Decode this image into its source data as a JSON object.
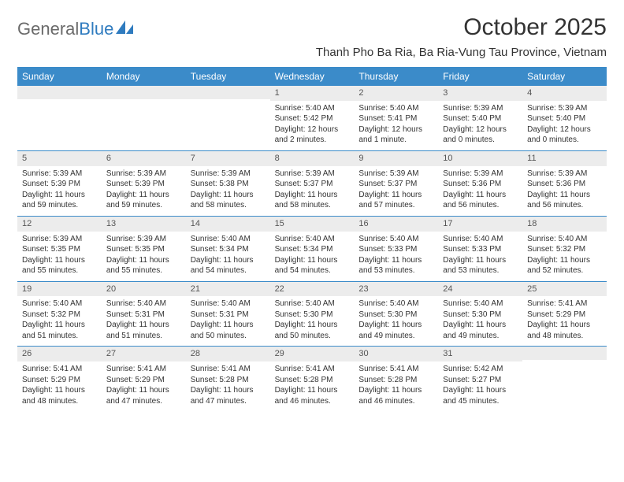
{
  "logo": {
    "text1": "General",
    "text2": "Blue"
  },
  "title": "October 2025",
  "location": "Thanh Pho Ba Ria, Ba Ria-Vung Tau Province, Vietnam",
  "header_bg": "#3b8bc9",
  "daynum_bg": "#ececec",
  "rule_color": "#3b8bc9",
  "days_of_week": [
    "Sunday",
    "Monday",
    "Tuesday",
    "Wednesday",
    "Thursday",
    "Friday",
    "Saturday"
  ],
  "weeks": [
    [
      {
        "n": "",
        "sr": "",
        "ss": "",
        "dl": ""
      },
      {
        "n": "",
        "sr": "",
        "ss": "",
        "dl": ""
      },
      {
        "n": "",
        "sr": "",
        "ss": "",
        "dl": ""
      },
      {
        "n": "1",
        "sr": "Sunrise: 5:40 AM",
        "ss": "Sunset: 5:42 PM",
        "dl": "Daylight: 12 hours and 2 minutes."
      },
      {
        "n": "2",
        "sr": "Sunrise: 5:40 AM",
        "ss": "Sunset: 5:41 PM",
        "dl": "Daylight: 12 hours and 1 minute."
      },
      {
        "n": "3",
        "sr": "Sunrise: 5:39 AM",
        "ss": "Sunset: 5:40 PM",
        "dl": "Daylight: 12 hours and 0 minutes."
      },
      {
        "n": "4",
        "sr": "Sunrise: 5:39 AM",
        "ss": "Sunset: 5:40 PM",
        "dl": "Daylight: 12 hours and 0 minutes."
      }
    ],
    [
      {
        "n": "5",
        "sr": "Sunrise: 5:39 AM",
        "ss": "Sunset: 5:39 PM",
        "dl": "Daylight: 11 hours and 59 minutes."
      },
      {
        "n": "6",
        "sr": "Sunrise: 5:39 AM",
        "ss": "Sunset: 5:39 PM",
        "dl": "Daylight: 11 hours and 59 minutes."
      },
      {
        "n": "7",
        "sr": "Sunrise: 5:39 AM",
        "ss": "Sunset: 5:38 PM",
        "dl": "Daylight: 11 hours and 58 minutes."
      },
      {
        "n": "8",
        "sr": "Sunrise: 5:39 AM",
        "ss": "Sunset: 5:37 PM",
        "dl": "Daylight: 11 hours and 58 minutes."
      },
      {
        "n": "9",
        "sr": "Sunrise: 5:39 AM",
        "ss": "Sunset: 5:37 PM",
        "dl": "Daylight: 11 hours and 57 minutes."
      },
      {
        "n": "10",
        "sr": "Sunrise: 5:39 AM",
        "ss": "Sunset: 5:36 PM",
        "dl": "Daylight: 11 hours and 56 minutes."
      },
      {
        "n": "11",
        "sr": "Sunrise: 5:39 AM",
        "ss": "Sunset: 5:36 PM",
        "dl": "Daylight: 11 hours and 56 minutes."
      }
    ],
    [
      {
        "n": "12",
        "sr": "Sunrise: 5:39 AM",
        "ss": "Sunset: 5:35 PM",
        "dl": "Daylight: 11 hours and 55 minutes."
      },
      {
        "n": "13",
        "sr": "Sunrise: 5:39 AM",
        "ss": "Sunset: 5:35 PM",
        "dl": "Daylight: 11 hours and 55 minutes."
      },
      {
        "n": "14",
        "sr": "Sunrise: 5:40 AM",
        "ss": "Sunset: 5:34 PM",
        "dl": "Daylight: 11 hours and 54 minutes."
      },
      {
        "n": "15",
        "sr": "Sunrise: 5:40 AM",
        "ss": "Sunset: 5:34 PM",
        "dl": "Daylight: 11 hours and 54 minutes."
      },
      {
        "n": "16",
        "sr": "Sunrise: 5:40 AM",
        "ss": "Sunset: 5:33 PM",
        "dl": "Daylight: 11 hours and 53 minutes."
      },
      {
        "n": "17",
        "sr": "Sunrise: 5:40 AM",
        "ss": "Sunset: 5:33 PM",
        "dl": "Daylight: 11 hours and 53 minutes."
      },
      {
        "n": "18",
        "sr": "Sunrise: 5:40 AM",
        "ss": "Sunset: 5:32 PM",
        "dl": "Daylight: 11 hours and 52 minutes."
      }
    ],
    [
      {
        "n": "19",
        "sr": "Sunrise: 5:40 AM",
        "ss": "Sunset: 5:32 PM",
        "dl": "Daylight: 11 hours and 51 minutes."
      },
      {
        "n": "20",
        "sr": "Sunrise: 5:40 AM",
        "ss": "Sunset: 5:31 PM",
        "dl": "Daylight: 11 hours and 51 minutes."
      },
      {
        "n": "21",
        "sr": "Sunrise: 5:40 AM",
        "ss": "Sunset: 5:31 PM",
        "dl": "Daylight: 11 hours and 50 minutes."
      },
      {
        "n": "22",
        "sr": "Sunrise: 5:40 AM",
        "ss": "Sunset: 5:30 PM",
        "dl": "Daylight: 11 hours and 50 minutes."
      },
      {
        "n": "23",
        "sr": "Sunrise: 5:40 AM",
        "ss": "Sunset: 5:30 PM",
        "dl": "Daylight: 11 hours and 49 minutes."
      },
      {
        "n": "24",
        "sr": "Sunrise: 5:40 AM",
        "ss": "Sunset: 5:30 PM",
        "dl": "Daylight: 11 hours and 49 minutes."
      },
      {
        "n": "25",
        "sr": "Sunrise: 5:41 AM",
        "ss": "Sunset: 5:29 PM",
        "dl": "Daylight: 11 hours and 48 minutes."
      }
    ],
    [
      {
        "n": "26",
        "sr": "Sunrise: 5:41 AM",
        "ss": "Sunset: 5:29 PM",
        "dl": "Daylight: 11 hours and 48 minutes."
      },
      {
        "n": "27",
        "sr": "Sunrise: 5:41 AM",
        "ss": "Sunset: 5:29 PM",
        "dl": "Daylight: 11 hours and 47 minutes."
      },
      {
        "n": "28",
        "sr": "Sunrise: 5:41 AM",
        "ss": "Sunset: 5:28 PM",
        "dl": "Daylight: 11 hours and 47 minutes."
      },
      {
        "n": "29",
        "sr": "Sunrise: 5:41 AM",
        "ss": "Sunset: 5:28 PM",
        "dl": "Daylight: 11 hours and 46 minutes."
      },
      {
        "n": "30",
        "sr": "Sunrise: 5:41 AM",
        "ss": "Sunset: 5:28 PM",
        "dl": "Daylight: 11 hours and 46 minutes."
      },
      {
        "n": "31",
        "sr": "Sunrise: 5:42 AM",
        "ss": "Sunset: 5:27 PM",
        "dl": "Daylight: 11 hours and 45 minutes."
      },
      {
        "n": "",
        "sr": "",
        "ss": "",
        "dl": ""
      }
    ]
  ]
}
